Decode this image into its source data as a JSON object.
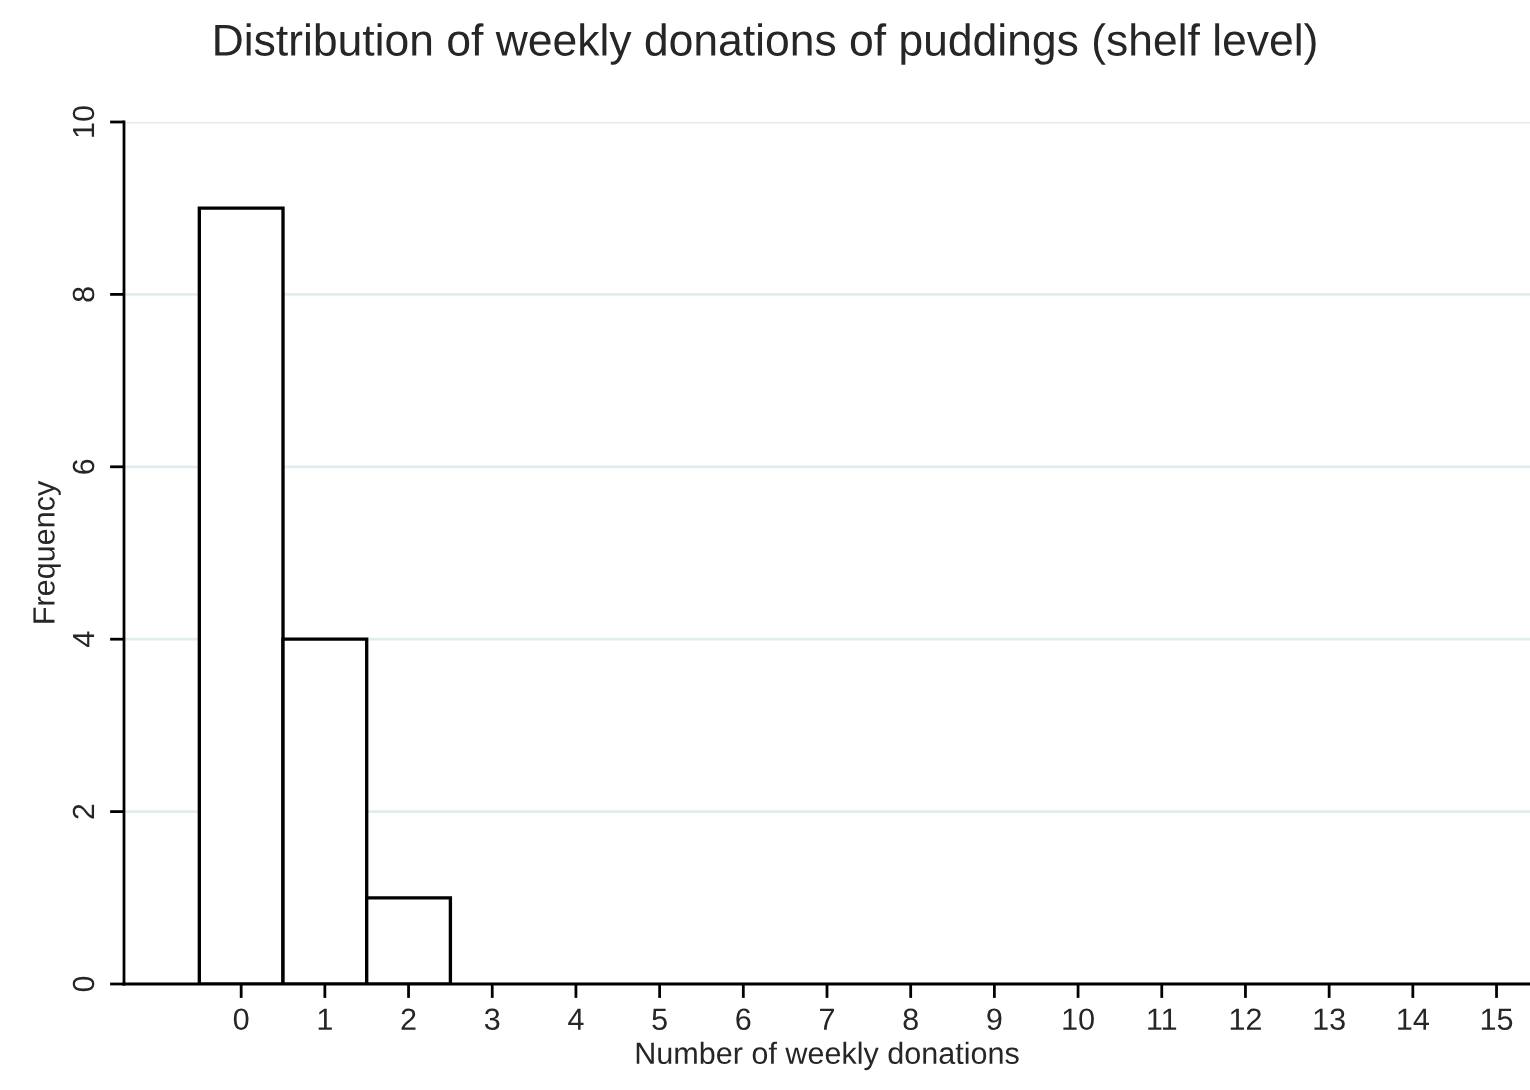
{
  "chart_data": {
    "type": "histogram",
    "title": "Distribution of weekly donations of puddings (shelf level)",
    "xlabel": "Number of weekly donations",
    "ylabel": "Frequency",
    "bins": [
      -0.5,
      0.5,
      1.5,
      2.5
    ],
    "values": [
      9,
      4,
      1
    ],
    "color": "#ffffff",
    "xlim": [
      -1.4,
      15.4
    ],
    "xticks": [
      0,
      1,
      2,
      3,
      4,
      5,
      6,
      7,
      8,
      9,
      10,
      11,
      12,
      13,
      14,
      15
    ],
    "ylim": [
      0,
      10
    ],
    "yticks": [
      0,
      2,
      4,
      6,
      8,
      10
    ],
    "grid": "y"
  }
}
